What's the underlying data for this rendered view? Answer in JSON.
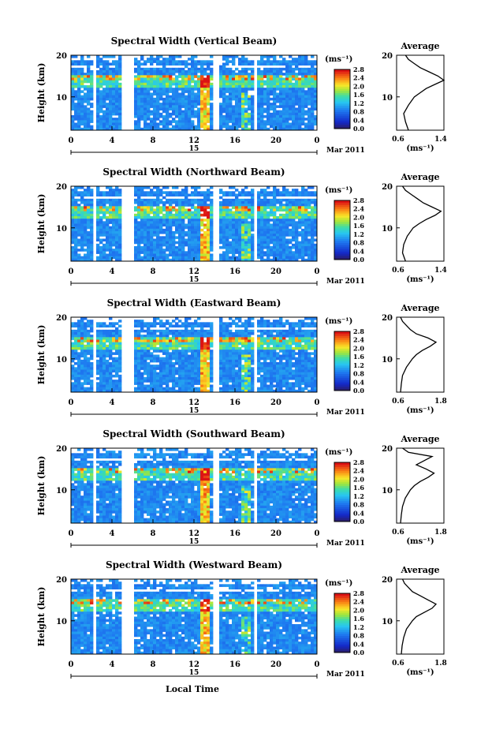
{
  "figure": {
    "xlabel": "Local Time",
    "ylabel": "Height (km)",
    "date_label": "Mar 2011",
    "day_label": "15",
    "avg_title": "Average",
    "unit_label": "(ms⁻¹)",
    "colorbar_ticks": [
      "0.0",
      "0.4",
      "0.8",
      "1.2",
      "1.6",
      "2.0",
      "2.4",
      "2.8"
    ],
    "x_ticks": [
      "0",
      "4",
      "8",
      "12",
      "16",
      "20",
      "0"
    ],
    "y_ticks": [
      "20",
      "10"
    ],
    "colors": {
      "low": "#1a2a8a",
      "mid": "#2aa0e0",
      "high": "#e02020",
      "bg": "#ffffff"
    }
  },
  "chart_data": [
    {
      "type": "heatmap",
      "title": "Spectral Width (Vertical Beam)",
      "xlim": [
        0,
        24
      ],
      "ylim": [
        2,
        20
      ],
      "x_ticks": [
        0,
        4,
        8,
        12,
        16,
        20,
        24
      ],
      "y_ticks": [
        10,
        20
      ],
      "colorbar_range": [
        0,
        2.8
      ],
      "profile": {
        "title": "Average",
        "xlim": [
          0.6,
          1.4
        ],
        "x_ticks": [
          "0.6",
          "1.4"
        ],
        "heights": [
          2,
          4,
          6,
          8,
          10,
          11,
          12,
          13,
          14,
          15,
          16,
          17,
          18,
          19,
          20
        ],
        "values": [
          0.8,
          0.75,
          0.72,
          0.8,
          0.9,
          1.0,
          1.1,
          1.25,
          1.4,
          1.3,
          1.15,
          1.0,
          0.9,
          0.8,
          0.75
        ]
      }
    },
    {
      "type": "heatmap",
      "title": "Spectral Width (Northward Beam)",
      "xlim": [
        0,
        24
      ],
      "ylim": [
        2,
        20
      ],
      "x_ticks": [
        0,
        4,
        8,
        12,
        16,
        20,
        24
      ],
      "y_ticks": [
        10,
        20
      ],
      "colorbar_range": [
        0,
        2.8
      ],
      "profile": {
        "title": "Average",
        "xlim": [
          0.6,
          1.4
        ],
        "x_ticks": [
          "0.6",
          "1.4"
        ],
        "heights": [
          2,
          4,
          6,
          8,
          10,
          11,
          12,
          13,
          14,
          15,
          16,
          17,
          18,
          19,
          20
        ],
        "values": [
          0.75,
          0.7,
          0.72,
          0.78,
          0.88,
          0.98,
          1.1,
          1.25,
          1.35,
          1.2,
          1.05,
          0.95,
          0.85,
          0.75,
          0.7
        ]
      }
    },
    {
      "type": "heatmap",
      "title": "Spectral Width (Eastward Beam)",
      "xlim": [
        0,
        24
      ],
      "ylim": [
        2,
        20
      ],
      "x_ticks": [
        0,
        4,
        8,
        12,
        16,
        20,
        24
      ],
      "y_ticks": [
        10,
        20
      ],
      "colorbar_range": [
        0,
        2.8
      ],
      "profile": {
        "title": "Average",
        "xlim": [
          0.6,
          1.8
        ],
        "x_ticks": [
          "0.6",
          "1.8"
        ],
        "heights": [
          2,
          4,
          6,
          8,
          10,
          11,
          12,
          13,
          14,
          15,
          16,
          17,
          18,
          19,
          20
        ],
        "values": [
          0.7,
          0.72,
          0.75,
          0.85,
          1.0,
          1.1,
          1.25,
          1.45,
          1.6,
          1.4,
          1.1,
          0.95,
          0.85,
          0.75,
          0.7
        ]
      }
    },
    {
      "type": "heatmap",
      "title": "Spectral Width (Southward Beam)",
      "xlim": [
        0,
        24
      ],
      "ylim": [
        2,
        20
      ],
      "x_ticks": [
        0,
        4,
        8,
        12,
        16,
        20,
        24
      ],
      "y_ticks": [
        10,
        20
      ],
      "colorbar_range": [
        0,
        2.8
      ],
      "profile": {
        "title": "Average",
        "xlim": [
          0.6,
          1.8
        ],
        "x_ticks": [
          "0.6",
          "1.8"
        ],
        "heights": [
          2,
          4,
          6,
          8,
          10,
          11,
          12,
          13,
          14,
          15,
          16,
          17,
          18,
          19,
          20
        ],
        "values": [
          0.7,
          0.72,
          0.75,
          0.82,
          0.95,
          1.05,
          1.2,
          1.4,
          1.55,
          1.35,
          1.1,
          1.3,
          1.5,
          0.9,
          0.75
        ]
      }
    },
    {
      "type": "heatmap",
      "title": "Spectral Width (Westward Beam)",
      "xlim": [
        0,
        24
      ],
      "ylim": [
        2,
        20
      ],
      "x_ticks": [
        0,
        4,
        8,
        12,
        16,
        20,
        24
      ],
      "y_ticks": [
        10,
        20
      ],
      "colorbar_range": [
        0,
        2.8
      ],
      "profile": {
        "title": "Average",
        "xlim": [
          0.6,
          1.8
        ],
        "x_ticks": [
          "0.6",
          "1.8"
        ],
        "heights": [
          2,
          4,
          6,
          8,
          10,
          11,
          12,
          13,
          14,
          15,
          16,
          17,
          18,
          19,
          20
        ],
        "values": [
          0.72,
          0.74,
          0.78,
          0.85,
          1.0,
          1.1,
          1.3,
          1.5,
          1.6,
          1.4,
          1.2,
          1.0,
          0.9,
          0.8,
          0.75
        ]
      }
    }
  ]
}
